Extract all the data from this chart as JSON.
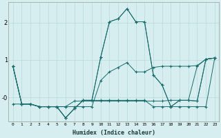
{
  "xlabel": "Humidex (Indice chaleur)",
  "bg_color": "#d6eef0",
  "grid_color": "#b8d8db",
  "line_color": "#1a6b6b",
  "xlim": [
    -0.5,
    23.5
  ],
  "ylim": [
    -0.65,
    2.55
  ],
  "ytick_vals": [
    0,
    1,
    2
  ],
  "ytick_labels": [
    "-0",
    "1",
    "2"
  ],
  "xticks": [
    0,
    1,
    2,
    3,
    4,
    5,
    6,
    7,
    8,
    9,
    10,
    11,
    12,
    13,
    14,
    15,
    16,
    17,
    18,
    19,
    20,
    21,
    22,
    23
  ],
  "series": [
    [
      0.83,
      -0.18,
      -0.18,
      -0.25,
      -0.25,
      -0.25,
      -0.55,
      -0.3,
      -0.08,
      -0.08,
      1.07,
      2.02,
      2.1,
      2.37,
      2.02,
      2.02,
      0.6,
      0.33,
      -0.25,
      -0.08,
      -0.08,
      -0.1,
      1.02,
      1.05
    ],
    [
      0.83,
      -0.18,
      -0.18,
      -0.25,
      -0.25,
      -0.25,
      -0.25,
      -0.25,
      -0.25,
      -0.25,
      0.45,
      0.68,
      0.8,
      0.93,
      0.68,
      0.68,
      0.8,
      0.83,
      0.83,
      0.83,
      0.83,
      0.85,
      1.02,
      1.05
    ],
    [
      0.83,
      -0.18,
      -0.18,
      -0.25,
      -0.25,
      -0.25,
      -0.25,
      -0.1,
      -0.1,
      -0.1,
      -0.1,
      -0.1,
      -0.1,
      -0.1,
      -0.1,
      -0.1,
      -0.1,
      -0.1,
      -0.08,
      -0.08,
      -0.08,
      0.83,
      1.02,
      1.05
    ],
    [
      -0.18,
      -0.18,
      -0.18,
      -0.25,
      -0.25,
      -0.25,
      -0.55,
      -0.3,
      -0.08,
      -0.08,
      -0.08,
      -0.08,
      -0.08,
      -0.08,
      -0.08,
      -0.08,
      -0.25,
      -0.25,
      -0.25,
      -0.25,
      -0.25,
      -0.25,
      -0.25,
      1.05
    ],
    [
      0.83,
      -0.18,
      -0.18,
      -0.25,
      -0.25,
      -0.25,
      -0.55,
      -0.3,
      -0.08,
      -0.08,
      1.07,
      2.02,
      2.1,
      2.37,
      2.02,
      2.02,
      0.6,
      0.33,
      -0.25,
      -0.08,
      -0.08,
      -0.1,
      1.02,
      1.05
    ]
  ]
}
